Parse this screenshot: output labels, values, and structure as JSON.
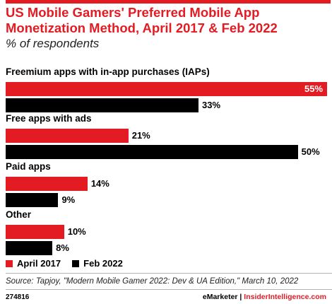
{
  "header": {
    "title": "US Mobile Gamers' Preferred Mobile App Monetization Method, April 2017 & Feb 2022",
    "subtitle": "% of respondents"
  },
  "colors": {
    "accent": "#e31b23",
    "series_1": "#e31b23",
    "series_2": "#000000"
  },
  "chart_data": {
    "type": "bar",
    "orientation": "horizontal",
    "title": "US Mobile Gamers' Preferred Mobile App Monetization Method, April 2017 & Feb 2022",
    "subtitle": "% of respondents",
    "categories": [
      "Freemium apps with in-app purchases (IAPs)",
      "Free apps with ads",
      "Paid apps",
      "Other"
    ],
    "series": [
      {
        "name": "April 2017",
        "color": "#e31b23",
        "values": [
          55,
          21,
          14,
          10
        ],
        "labels": [
          "55%",
          "21%",
          "14%",
          "10%"
        ]
      },
      {
        "name": "Feb 2022",
        "color": "#000000",
        "values": [
          33,
          50,
          9,
          8
        ],
        "labels": [
          "33%",
          "50%",
          "9%",
          "8%"
        ]
      }
    ],
    "legend_position": "bottom-left",
    "grid": false
  },
  "footer": {
    "source": "Source: Tapjoy, \"Modern Mobile Gamer 2022: Dev & UA Edition,\" March 10, 2022",
    "id": "274816",
    "brand_emarketer": "eMarketer",
    "brand_separator": "|",
    "brand_insider": "InsiderIntelligence.com"
  }
}
